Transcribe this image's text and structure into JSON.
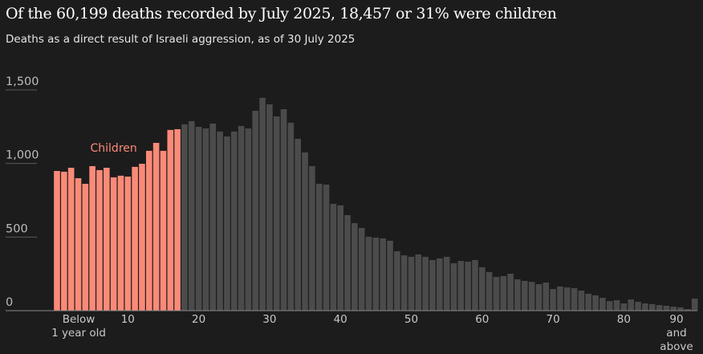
{
  "chart_data": {
    "type": "bar",
    "title": "Of the 60,199 deaths recorded by July 2025, 18,457 or 31% were children",
    "subtitle": "Deaths as a direct result of Israeli aggression, as of 30 July 2025",
    "categories": [
      "Below\n1 year old",
      null,
      null,
      null,
      null,
      null,
      null,
      null,
      null,
      null,
      "10",
      null,
      null,
      null,
      null,
      null,
      null,
      null,
      null,
      null,
      "20",
      null,
      null,
      null,
      null,
      null,
      null,
      null,
      null,
      null,
      "30",
      null,
      null,
      null,
      null,
      null,
      null,
      null,
      null,
      null,
      "40",
      null,
      null,
      null,
      null,
      null,
      null,
      null,
      null,
      null,
      "50",
      null,
      null,
      null,
      null,
      null,
      null,
      null,
      null,
      null,
      "60",
      null,
      null,
      null,
      null,
      null,
      null,
      null,
      null,
      null,
      "70",
      null,
      null,
      null,
      null,
      null,
      null,
      null,
      null,
      null,
      "80",
      null,
      null,
      null,
      null,
      null,
      null,
      null,
      null,
      null,
      "90 and\nabove"
    ],
    "series": [
      {
        "name": "Children",
        "color": "#fa8a78",
        "values": [
          949,
          944,
          971,
          900,
          862,
          982,
          955,
          971,
          906,
          917,
          911,
          977,
          998,
          1086,
          1140,
          1086,
          1228,
          1233,
          null,
          null,
          null,
          null,
          null,
          null,
          null,
          null,
          null,
          null,
          null,
          null,
          null,
          null,
          null,
          null,
          null,
          null,
          null,
          null,
          null,
          null,
          null,
          null,
          null,
          null,
          null,
          null,
          null,
          null,
          null,
          null,
          null,
          null,
          null,
          null,
          null,
          null,
          null,
          null,
          null,
          null,
          null,
          null,
          null,
          null,
          null,
          null,
          null,
          null,
          null,
          null,
          null,
          null,
          null,
          null,
          null,
          null,
          null,
          null,
          null,
          null,
          null,
          null,
          null,
          null,
          null,
          null,
          null,
          null,
          null,
          null,
          null
        ]
      },
      {
        "color": "#4b4b4b",
        "values": [
          null,
          null,
          null,
          null,
          null,
          null,
          null,
          null,
          null,
          null,
          null,
          null,
          null,
          null,
          null,
          null,
          null,
          null,
          1266,
          1288,
          1249,
          1238,
          1271,
          1217,
          1184,
          1217,
          1255,
          1238,
          1358,
          1446,
          1402,
          1320,
          1369,
          1277,
          1168,
          1075,
          982,
          862,
          857,
          726,
          715,
          649,
          595,
          562,
          502,
          496,
          491,
          475,
          404,
          376,
          366,
          382,
          366,
          344,
          355,
          366,
          322,
          338,
          333,
          344,
          295,
          262,
          229,
          235,
          251,
          213,
          202,
          196,
          180,
          191,
          147,
          164,
          158,
          153,
          136,
          115,
          104,
          87,
          65,
          71,
          49,
          76,
          60,
          49,
          44,
          38,
          33,
          27,
          22,
          11,
          82
        ]
      }
    ],
    "ylim": [
      0,
      1500
    ],
    "yticks": [
      0,
      500,
      {
        "value": 1000,
        "label": "1,000"
      },
      {
        "value": 1500,
        "label": "1,500"
      }
    ],
    "grid": true
  }
}
